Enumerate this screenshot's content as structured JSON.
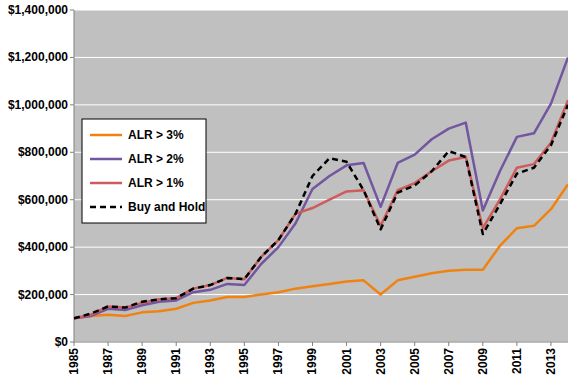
{
  "chart_data": {
    "type": "line",
    "x": [
      1985,
      1986,
      1987,
      1988,
      1989,
      1990,
      1991,
      1992,
      1993,
      1994,
      1995,
      1996,
      1997,
      1998,
      1999,
      2000,
      2001,
      2002,
      2003,
      2004,
      2005,
      2006,
      2007,
      2008,
      2009,
      2010,
      2011,
      2012,
      2013,
      2014
    ],
    "xlim": [
      1985,
      2014
    ],
    "xticks": [
      1985,
      1987,
      1989,
      1991,
      1993,
      1995,
      1997,
      1999,
      2001,
      2003,
      2005,
      2007,
      2009,
      2011,
      2013
    ],
    "ylim": [
      0,
      1400000
    ],
    "yticks": [
      {
        "value": 0,
        "label": "$0"
      },
      {
        "value": 200000,
        "label": "$200,000"
      },
      {
        "value": 400000,
        "label": "$400,000"
      },
      {
        "value": 600000,
        "label": "$600,000"
      },
      {
        "value": 800000,
        "label": "$800,000"
      },
      {
        "value": 1000000,
        "label": "$1,000,000"
      },
      {
        "value": 1200000,
        "label": "$1,200,000"
      },
      {
        "value": 1400000,
        "label": "$1,400,000"
      }
    ],
    "grid": true,
    "legend": "left",
    "series": [
      {
        "name": "ALR > 3%",
        "color": "#f0820f",
        "line_style": "solid",
        "values": [
          100000,
          110000,
          115000,
          110000,
          125000,
          130000,
          140000,
          165000,
          175000,
          190000,
          190000,
          200000,
          210000,
          225000,
          235000,
          245000,
          255000,
          260000,
          200000,
          260000,
          275000,
          290000,
          300000,
          305000,
          305000,
          405000,
          480000,
          490000,
          560000,
          665000
        ]
      },
      {
        "name": "ALR > 2%",
        "color": "#7256a0",
        "line_style": "solid",
        "values": [
          100000,
          110000,
          140000,
          135000,
          155000,
          170000,
          175000,
          210000,
          220000,
          245000,
          240000,
          330000,
          400000,
          500000,
          645000,
          700000,
          745000,
          755000,
          570000,
          755000,
          790000,
          855000,
          900000,
          925000,
          555000,
          720000,
          865000,
          880000,
          1005000,
          1200000
        ]
      },
      {
        "name": "ALR > 1%",
        "color": "#cd5c5c",
        "line_style": "solid",
        "values": [
          100000,
          115000,
          150000,
          145000,
          165000,
          180000,
          185000,
          225000,
          240000,
          270000,
          265000,
          360000,
          430000,
          540000,
          565000,
          600000,
          635000,
          640000,
          490000,
          640000,
          670000,
          720000,
          765000,
          780000,
          480000,
          600000,
          735000,
          750000,
          840000,
          1020000
        ]
      },
      {
        "name": "Buy and Hold",
        "color": "#000000",
        "line_style": "dashed",
        "values": [
          100000,
          120000,
          150000,
          145000,
          170000,
          180000,
          185000,
          225000,
          240000,
          270000,
          265000,
          360000,
          430000,
          540000,
          700000,
          775000,
          760000,
          640000,
          475000,
          630000,
          660000,
          720000,
          805000,
          780000,
          455000,
          580000,
          710000,
          735000,
          830000,
          1000000
        ]
      }
    ]
  }
}
